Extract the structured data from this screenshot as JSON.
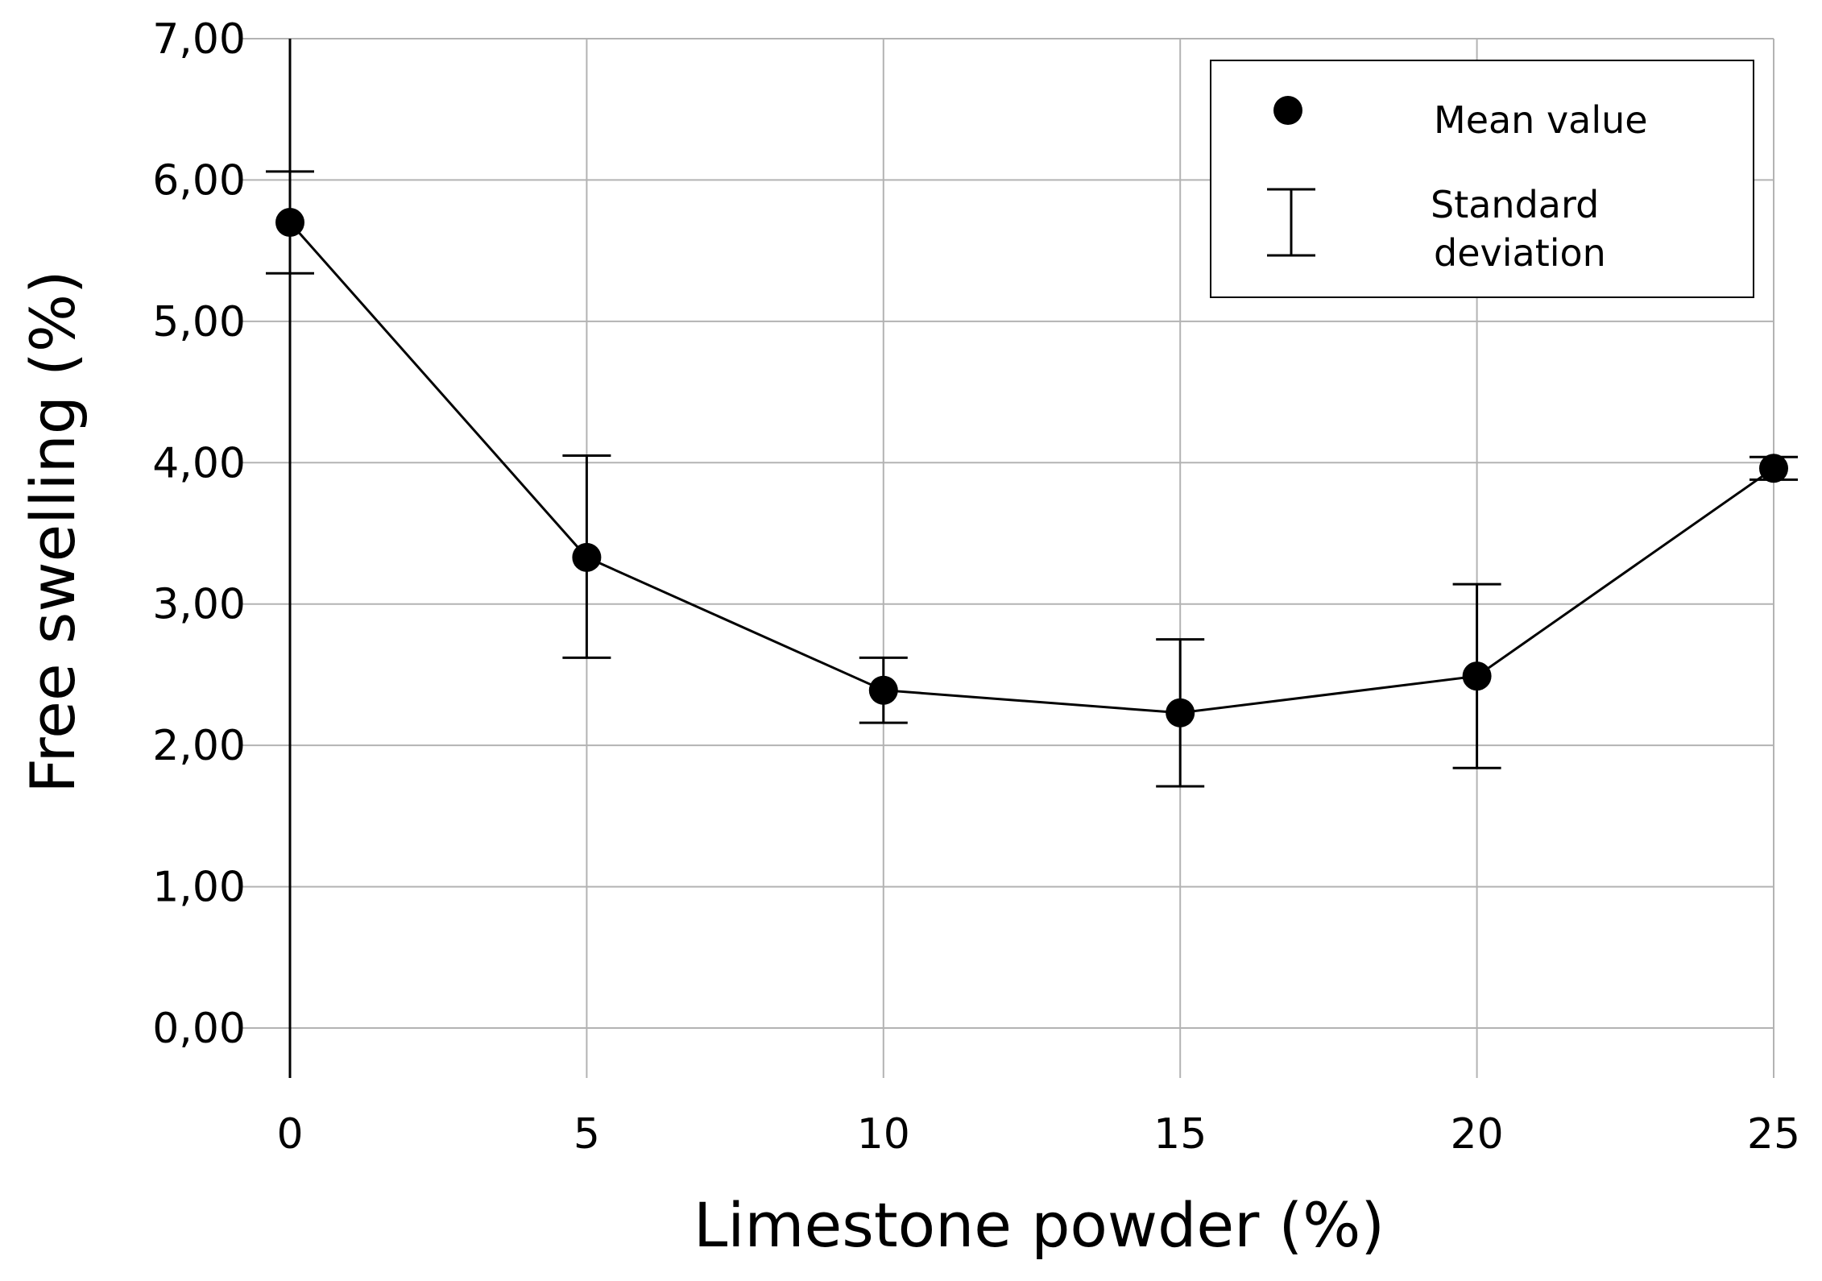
{
  "chart_data": {
    "type": "line",
    "title": "",
    "xlabel": "Limestone powder (%)",
    "ylabel": "Free swelling (%)",
    "x": [
      0,
      5,
      10,
      15,
      20,
      25
    ],
    "x_tick_labels": [
      "0",
      "5",
      "10",
      "15",
      "20",
      "25"
    ],
    "y_tick_labels": [
      "0,00",
      "1,00",
      "2,00",
      "3,00",
      "4,00",
      "5,00",
      "6,00",
      "7,00"
    ],
    "xlim": [
      0,
      25
    ],
    "ylim": [
      0,
      7
    ],
    "grid": true,
    "series": [
      {
        "name": "Mean value",
        "values": [
          5.7,
          3.33,
          2.39,
          2.23,
          2.49,
          3.96
        ],
        "std_upper": [
          6.06,
          4.05,
          2.62,
          2.75,
          3.14,
          4.04
        ],
        "std_lower": [
          5.34,
          2.62,
          2.16,
          1.71,
          1.84,
          3.88
        ]
      }
    ],
    "legend": {
      "position": "top-right",
      "mean_label": "Mean value",
      "std_label_line1": "Standard",
      "std_label_line2": "deviation"
    }
  }
}
